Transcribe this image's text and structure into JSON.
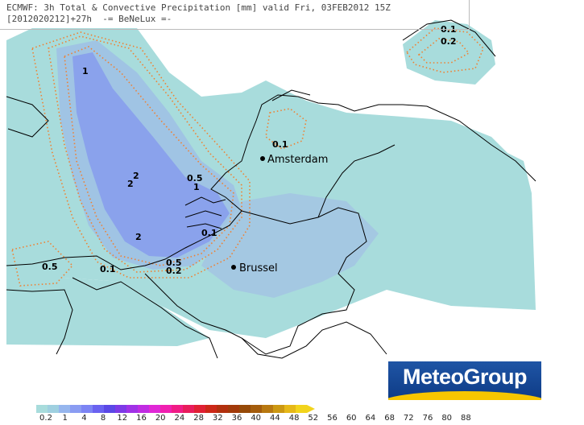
{
  "header": {
    "line1": "ECMWF: 3h Total & Convective Precipitation [mm] valid Fri, 03FEB2012 15Z",
    "line2": "[2012020212]+27h  -= BeNeLux =-"
  },
  "cities": [
    {
      "name": "Amsterdam"
    },
    {
      "name": "Brussel"
    }
  ],
  "contour_labels": [
    "1",
    "2",
    "2",
    "0.5",
    "1",
    "2",
    "0.1",
    "0.5",
    "0.2",
    "0.5",
    "0.1",
    "0.1",
    "0.1",
    "0.2"
  ],
  "legend": {
    "labels": [
      "0.2",
      "1",
      "4",
      "8",
      "12",
      "16",
      "20",
      "24",
      "28",
      "32",
      "36",
      "40",
      "44",
      "48",
      "52",
      "56",
      "60",
      "64",
      "68",
      "72",
      "76",
      "80",
      "88"
    ],
    "colors": [
      "#a8dcdc",
      "#9fd0e0",
      "#96b6ee",
      "#8a9cf2",
      "#7c84f4",
      "#6a62f0",
      "#5b48e6",
      "#7d3ae6",
      "#a032e6",
      "#c02ce2",
      "#e028d6",
      "#f020b0",
      "#f01c86",
      "#e81c5c",
      "#e02034",
      "#cc2818",
      "#b2300e",
      "#a23a0a",
      "#964a08",
      "#a45c0c",
      "#b87810",
      "#cc9812",
      "#e6b818",
      "#f2d41c"
    ]
  },
  "logo": {
    "text": "MeteoGroup"
  },
  "colors": {
    "light_precip": "#a8dcdc",
    "medium_precip": "#a0c4e4",
    "heavy_precip": "#8aa2ec",
    "contour": "#f08030",
    "land_border": "#000000"
  }
}
